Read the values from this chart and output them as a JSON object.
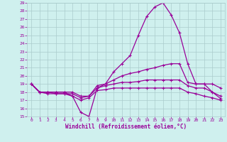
{
  "xlabel": "Windchill (Refroidissement éolien,°C)",
  "bg_color": "#cff0ee",
  "grid_color": "#aacccc",
  "line_color": "#990099",
  "xlim": [
    -0.5,
    23.5
  ],
  "ylim": [
    15,
    29
  ],
  "yticks": [
    15,
    16,
    17,
    18,
    19,
    20,
    21,
    22,
    23,
    24,
    25,
    26,
    27,
    28,
    29
  ],
  "xticks": [
    0,
    1,
    2,
    3,
    4,
    5,
    6,
    7,
    8,
    9,
    10,
    11,
    12,
    13,
    14,
    15,
    16,
    17,
    18,
    19,
    20,
    21,
    22,
    23
  ],
  "line1_y": [
    19.0,
    18.0,
    18.0,
    18.0,
    18.0,
    17.5,
    15.5,
    15.0,
    18.5,
    19.0,
    20.5,
    21.5,
    22.5,
    25.0,
    27.3,
    28.5,
    29.0,
    27.5,
    25.3,
    21.5,
    19.0,
    19.0,
    18.0,
    17.2
  ],
  "line2_y": [
    19.0,
    18.0,
    18.0,
    18.0,
    18.0,
    18.0,
    17.5,
    17.5,
    18.8,
    19.0,
    19.5,
    20.0,
    20.3,
    20.5,
    20.8,
    21.0,
    21.3,
    21.5,
    21.5,
    19.2,
    19.0,
    19.0,
    19.0,
    18.5
  ],
  "line3_y": [
    19.0,
    18.0,
    18.0,
    17.8,
    17.8,
    17.8,
    17.3,
    17.5,
    18.5,
    18.8,
    19.0,
    19.2,
    19.2,
    19.3,
    19.5,
    19.5,
    19.5,
    19.5,
    19.5,
    18.8,
    18.5,
    18.5,
    18.0,
    17.5
  ],
  "line4_y": [
    19.0,
    18.0,
    17.8,
    17.8,
    17.8,
    17.5,
    17.0,
    17.3,
    18.2,
    18.3,
    18.5,
    18.5,
    18.5,
    18.5,
    18.5,
    18.5,
    18.5,
    18.5,
    18.5,
    18.0,
    17.8,
    17.5,
    17.3,
    17.0
  ]
}
